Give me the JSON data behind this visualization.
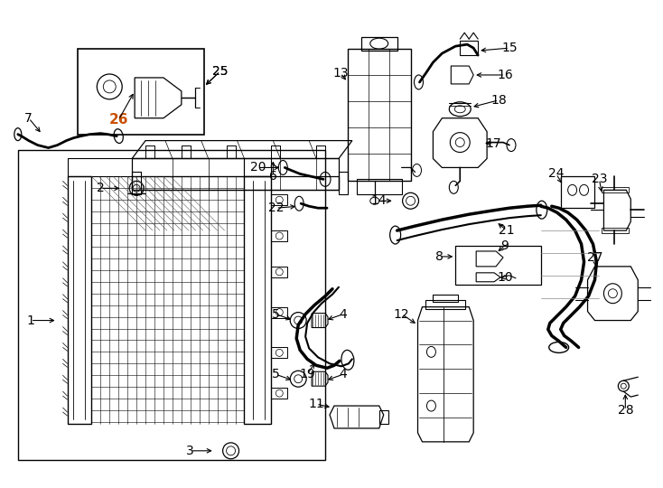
{
  "bg_color": "#ffffff",
  "line_color": "#000000",
  "highlight_color": "#c85000",
  "fig_width": 7.34,
  "fig_height": 5.4,
  "dpi": 100
}
